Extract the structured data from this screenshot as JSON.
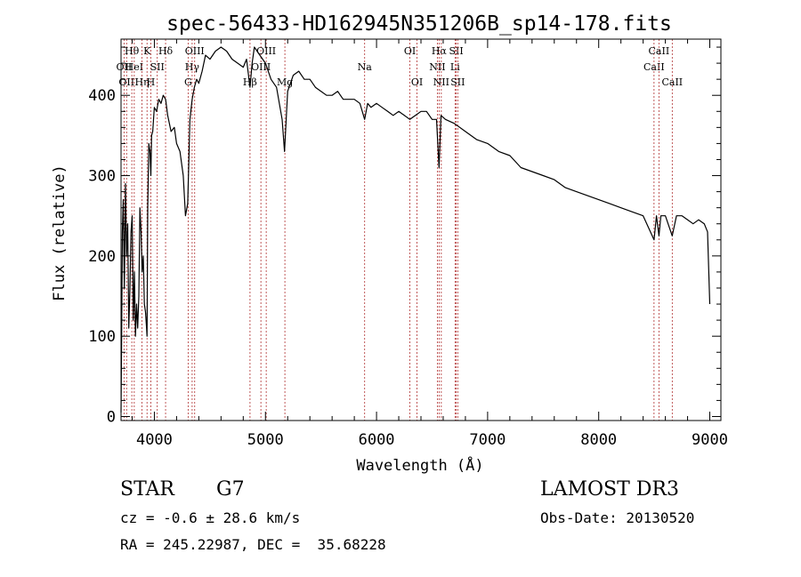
{
  "chart_data": {
    "type": "line",
    "title": "spec-56433-HD162945N351206B_sp14-178.fits",
    "xlabel": "Wavelength (Å)",
    "ylabel": "Flux (relative)",
    "xlim": [
      3700,
      9100
    ],
    "ylim": [
      -5,
      470
    ],
    "xticks": [
      4000,
      5000,
      6000,
      7000,
      8000,
      9000
    ],
    "xtick_labels": [
      "4000",
      "5000",
      "6000",
      "7000",
      "8000",
      "9000"
    ],
    "yticks": [
      0,
      100,
      200,
      300,
      400
    ],
    "ytick_labels": [
      "0",
      "100",
      "200",
      "300",
      "400"
    ],
    "grid": false,
    "colors": {
      "spectrum": "#000000",
      "lines": "#b03030"
    },
    "series": [
      {
        "x": [
          3700,
          3705,
          3712,
          3720,
          3730,
          3740,
          3750,
          3760,
          3770,
          3780,
          3790,
          3800,
          3810,
          3820,
          3830,
          3840,
          3850,
          3860,
          3870,
          3880,
          3890,
          3900,
          3910,
          3920,
          3930,
          3934,
          3940,
          3950,
          3960,
          3968,
          3975,
          3985,
          4000,
          4020,
          4040,
          4060,
          4080,
          4101,
          4120,
          4150,
          4180,
          4200,
          4230,
          4260,
          4280,
          4300,
          4320,
          4340,
          4360,
          4380,
          4400,
          4430,
          4460,
          4500,
          4550,
          4600,
          4650,
          4700,
          4750,
          4800,
          4830,
          4861,
          4880,
          4900,
          4950,
          5000,
          5050,
          5100,
          5150,
          5172,
          5183,
          5200,
          5250,
          5300,
          5350,
          5400,
          5450,
          5500,
          5550,
          5600,
          5650,
          5700,
          5750,
          5800,
          5850,
          5893,
          5920,
          5950,
          6000,
          6050,
          6100,
          6150,
          6200,
          6250,
          6300,
          6350,
          6400,
          6450,
          6500,
          6540,
          6563,
          6580,
          6620,
          6700,
          6800,
          6900,
          7000,
          7100,
          7200,
          7300,
          7400,
          7500,
          7600,
          7700,
          7800,
          7900,
          8000,
          8100,
          8200,
          8300,
          8400,
          8498,
          8520,
          8542,
          8560,
          8600,
          8662,
          8700,
          8750,
          8800,
          8850,
          8900,
          8950,
          8980,
          9000
        ],
        "y": [
          5,
          90,
          230,
          270,
          160,
          290,
          200,
          240,
          110,
          160,
          230,
          250,
          120,
          180,
          100,
          140,
          110,
          150,
          260,
          230,
          180,
          200,
          140,
          130,
          110,
          100,
          260,
          340,
          330,
          300,
          350,
          355,
          385,
          380,
          395,
          390,
          400,
          395,
          375,
          355,
          360,
          340,
          330,
          300,
          250,
          265,
          370,
          395,
          410,
          420,
          415,
          430,
          450,
          445,
          455,
          460,
          455,
          445,
          440,
          435,
          445,
          410,
          440,
          460,
          450,
          440,
          420,
          410,
          370,
          330,
          360,
          405,
          425,
          430,
          420,
          420,
          410,
          405,
          400,
          400,
          405,
          395,
          395,
          395,
          390,
          370,
          390,
          385,
          390,
          385,
          380,
          375,
          380,
          375,
          370,
          375,
          380,
          380,
          370,
          370,
          310,
          375,
          370,
          365,
          355,
          345,
          340,
          330,
          325,
          310,
          305,
          300,
          295,
          285,
          280,
          275,
          270,
          265,
          260,
          255,
          250,
          220,
          250,
          225,
          250,
          250,
          225,
          250,
          250,
          245,
          240,
          245,
          240,
          230,
          140
        ]
      }
    ],
    "lines": [
      {
        "wavelength": 3727,
        "label": "OII",
        "row": 1
      },
      {
        "wavelength": 3750,
        "label": "OII",
        "row": 2
      },
      {
        "wavelength": 3797,
        "label": "Hθ",
        "row": 0
      },
      {
        "wavelength": 3819,
        "label": "HeI",
        "row": 1
      },
      {
        "wavelength": 3889,
        "label": "Hη",
        "row": 2
      },
      {
        "wavelength": 3934,
        "label": "K",
        "row": 0
      },
      {
        "wavelength": 3968,
        "label": "H",
        "row": 2
      },
      {
        "wavelength": 4026,
        "label": "SII",
        "row": 1
      },
      {
        "wavelength": 4101,
        "label": "Hδ",
        "row": 0
      },
      {
        "wavelength": 4304,
        "label": "G",
        "row": 2
      },
      {
        "wavelength": 4340,
        "label": "Hγ",
        "row": 1
      },
      {
        "wavelength": 4363,
        "label": "OIII",
        "row": 0
      },
      {
        "wavelength": 4861,
        "label": "Hβ",
        "row": 2
      },
      {
        "wavelength": 4959,
        "label": "OIII",
        "row": 1
      },
      {
        "wavelength": 5007,
        "label": "OIII",
        "row": 0
      },
      {
        "wavelength": 5175,
        "label": "Mg",
        "row": 2
      },
      {
        "wavelength": 5893,
        "label": "Na",
        "row": 1
      },
      {
        "wavelength": 6300,
        "label": "OI",
        "row": 0
      },
      {
        "wavelength": 6364,
        "label": "OI",
        "row": 2
      },
      {
        "wavelength": 6548,
        "label": "NII",
        "row": 1
      },
      {
        "wavelength": 6563,
        "label": "Hα",
        "row": 0
      },
      {
        "wavelength": 6583,
        "label": "NII",
        "row": 2
      },
      {
        "wavelength": 6707,
        "label": "Li",
        "row": 1
      },
      {
        "wavelength": 6717,
        "label": "SII",
        "row": 0
      },
      {
        "wavelength": 6731,
        "label": "SII",
        "row": 2
      },
      {
        "wavelength": 8498,
        "label": "CaII",
        "row": 1
      },
      {
        "wavelength": 8542,
        "label": "CaII",
        "row": 0
      },
      {
        "wavelength": 8662,
        "label": "CaII",
        "row": 2
      }
    ]
  },
  "info": {
    "class_label": "STAR",
    "subclass": "G7",
    "redshift_text": "cz = -0.6 ± 28.6 km/s",
    "coords_text": "RA = 245.22987, DEC =  35.68228",
    "survey": "LAMOST DR3",
    "obs_date_text": "Obs-Date: 20130520"
  }
}
